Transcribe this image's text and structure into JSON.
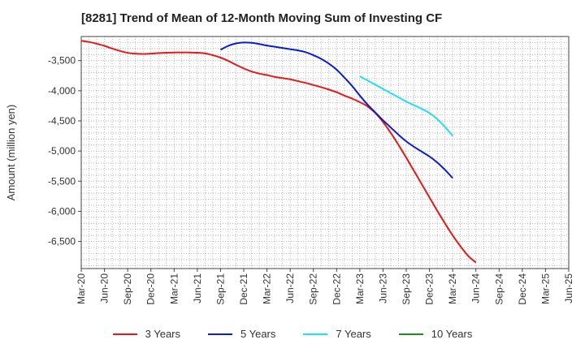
{
  "chart_data": {
    "type": "line",
    "title": "[8281]  Trend of Mean of 12-Month Moving Sum of Investing CF",
    "xlabel": "",
    "ylabel": "Amount (million yen)",
    "ylim": [
      -6950,
      -3100
    ],
    "yticks": [
      -3500,
      -4000,
      -4500,
      -5000,
      -5500,
      -6000,
      -6500
    ],
    "ytick_labels": [
      "-3,500",
      "-4,000",
      "-4,500",
      "-5,000",
      "-5,500",
      "-6,000",
      "-6,500"
    ],
    "xticks": [
      "Mar-20",
      "Jun-20",
      "Sep-20",
      "Dec-20",
      "Mar-21",
      "Jun-21",
      "Sep-21",
      "Dec-21",
      "Mar-22",
      "Jun-22",
      "Sep-22",
      "Dec-22",
      "Mar-23",
      "Jun-23",
      "Sep-23",
      "Dec-23",
      "Mar-24",
      "Jun-24",
      "Sep-24",
      "Dec-24",
      "Mar-25",
      "Jun-25"
    ],
    "grid": true,
    "legend_position": "bottom",
    "series": [
      {
        "name": "3 Years",
        "color": "#e31a1c",
        "start_index": 0,
        "values": [
          -3170,
          -3190,
          -3220,
          -3255,
          -3300,
          -3340,
          -3370,
          -3385,
          -3390,
          -3385,
          -3375,
          -3370,
          -3365,
          -3365,
          -3365,
          -3370,
          -3380,
          -3410,
          -3450,
          -3505,
          -3570,
          -3630,
          -3680,
          -3715,
          -3740,
          -3770,
          -3790,
          -3810,
          -3840,
          -3870,
          -3905,
          -3940,
          -3980,
          -4025,
          -4080,
          -4130,
          -4190,
          -4260,
          -4370,
          -4520,
          -4700,
          -4900,
          -5110,
          -5330,
          -5550,
          -5770,
          -5990,
          -6200,
          -6400,
          -6580,
          -6740,
          -6850
        ]
      },
      {
        "name": "5 Years",
        "color": "#0a1ecf",
        "start_index": 18,
        "values": [
          -3320,
          -3255,
          -3215,
          -3200,
          -3205,
          -3225,
          -3250,
          -3270,
          -3290,
          -3310,
          -3330,
          -3360,
          -3410,
          -3470,
          -3550,
          -3650,
          -3780,
          -3920,
          -4080,
          -4230,
          -4360,
          -4490,
          -4610,
          -4730,
          -4840,
          -4930,
          -5010,
          -5090,
          -5190,
          -5310,
          -5450
        ]
      },
      {
        "name": "7 Years",
        "color": "#22e0f0",
        "start_index": 36,
        "values": [
          -3760,
          -3830,
          -3900,
          -3970,
          -4040,
          -4110,
          -4180,
          -4240,
          -4300,
          -4370,
          -4470,
          -4600,
          -4750
        ]
      },
      {
        "name": "10 Years",
        "color": "#1e8c1e",
        "start_index": 0,
        "values": []
      }
    ]
  }
}
